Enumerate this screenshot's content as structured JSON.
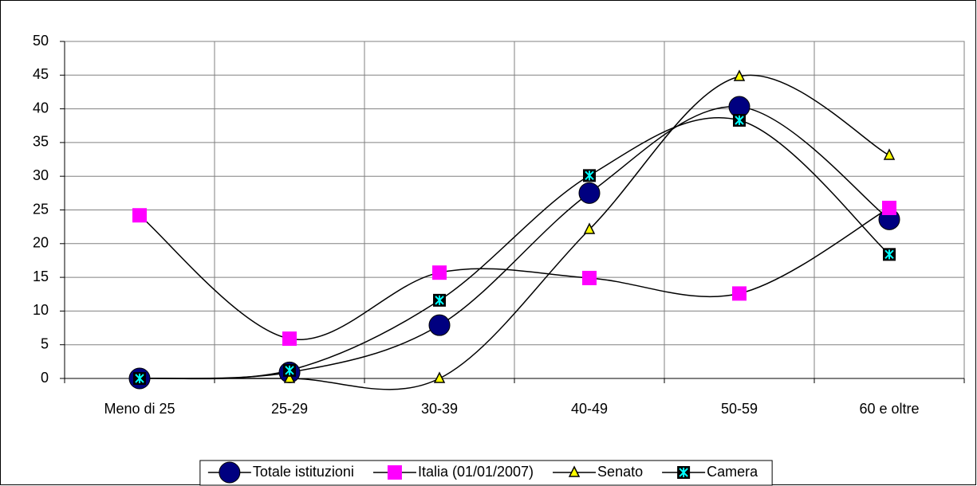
{
  "chart_data": {
    "type": "line",
    "categories": [
      "Meno di 25",
      "25-29",
      "30-39",
      "40-49",
      "50-59",
      "60 e oltre"
    ],
    "series": [
      {
        "name": "Totale istituzioni",
        "color": "#000080",
        "marker": "circle",
        "values": [
          0,
          0.9,
          7.9,
          27.5,
          40.3,
          23.6
        ]
      },
      {
        "name": "Italia (01/01/2007)",
        "color": "#ff00ff",
        "marker": "square",
        "values": [
          24.2,
          5.9,
          15.7,
          14.9,
          12.6,
          25.3
        ]
      },
      {
        "name": "Senato",
        "color": "#ffff00",
        "marker": "triangle",
        "values": [
          0,
          0,
          0,
          22.1,
          44.8,
          33.1
        ]
      },
      {
        "name": "Camera",
        "color": "#00ffff",
        "marker": "star-box",
        "values": [
          0,
          1.2,
          11.6,
          30.1,
          38.3,
          18.4
        ]
      }
    ],
    "ylim": [
      0,
      50
    ],
    "yticks": [
      0,
      5,
      10,
      15,
      20,
      25,
      30,
      35,
      40,
      45,
      50
    ],
    "grid": true,
    "smooth": true,
    "legend": "bottom"
  }
}
